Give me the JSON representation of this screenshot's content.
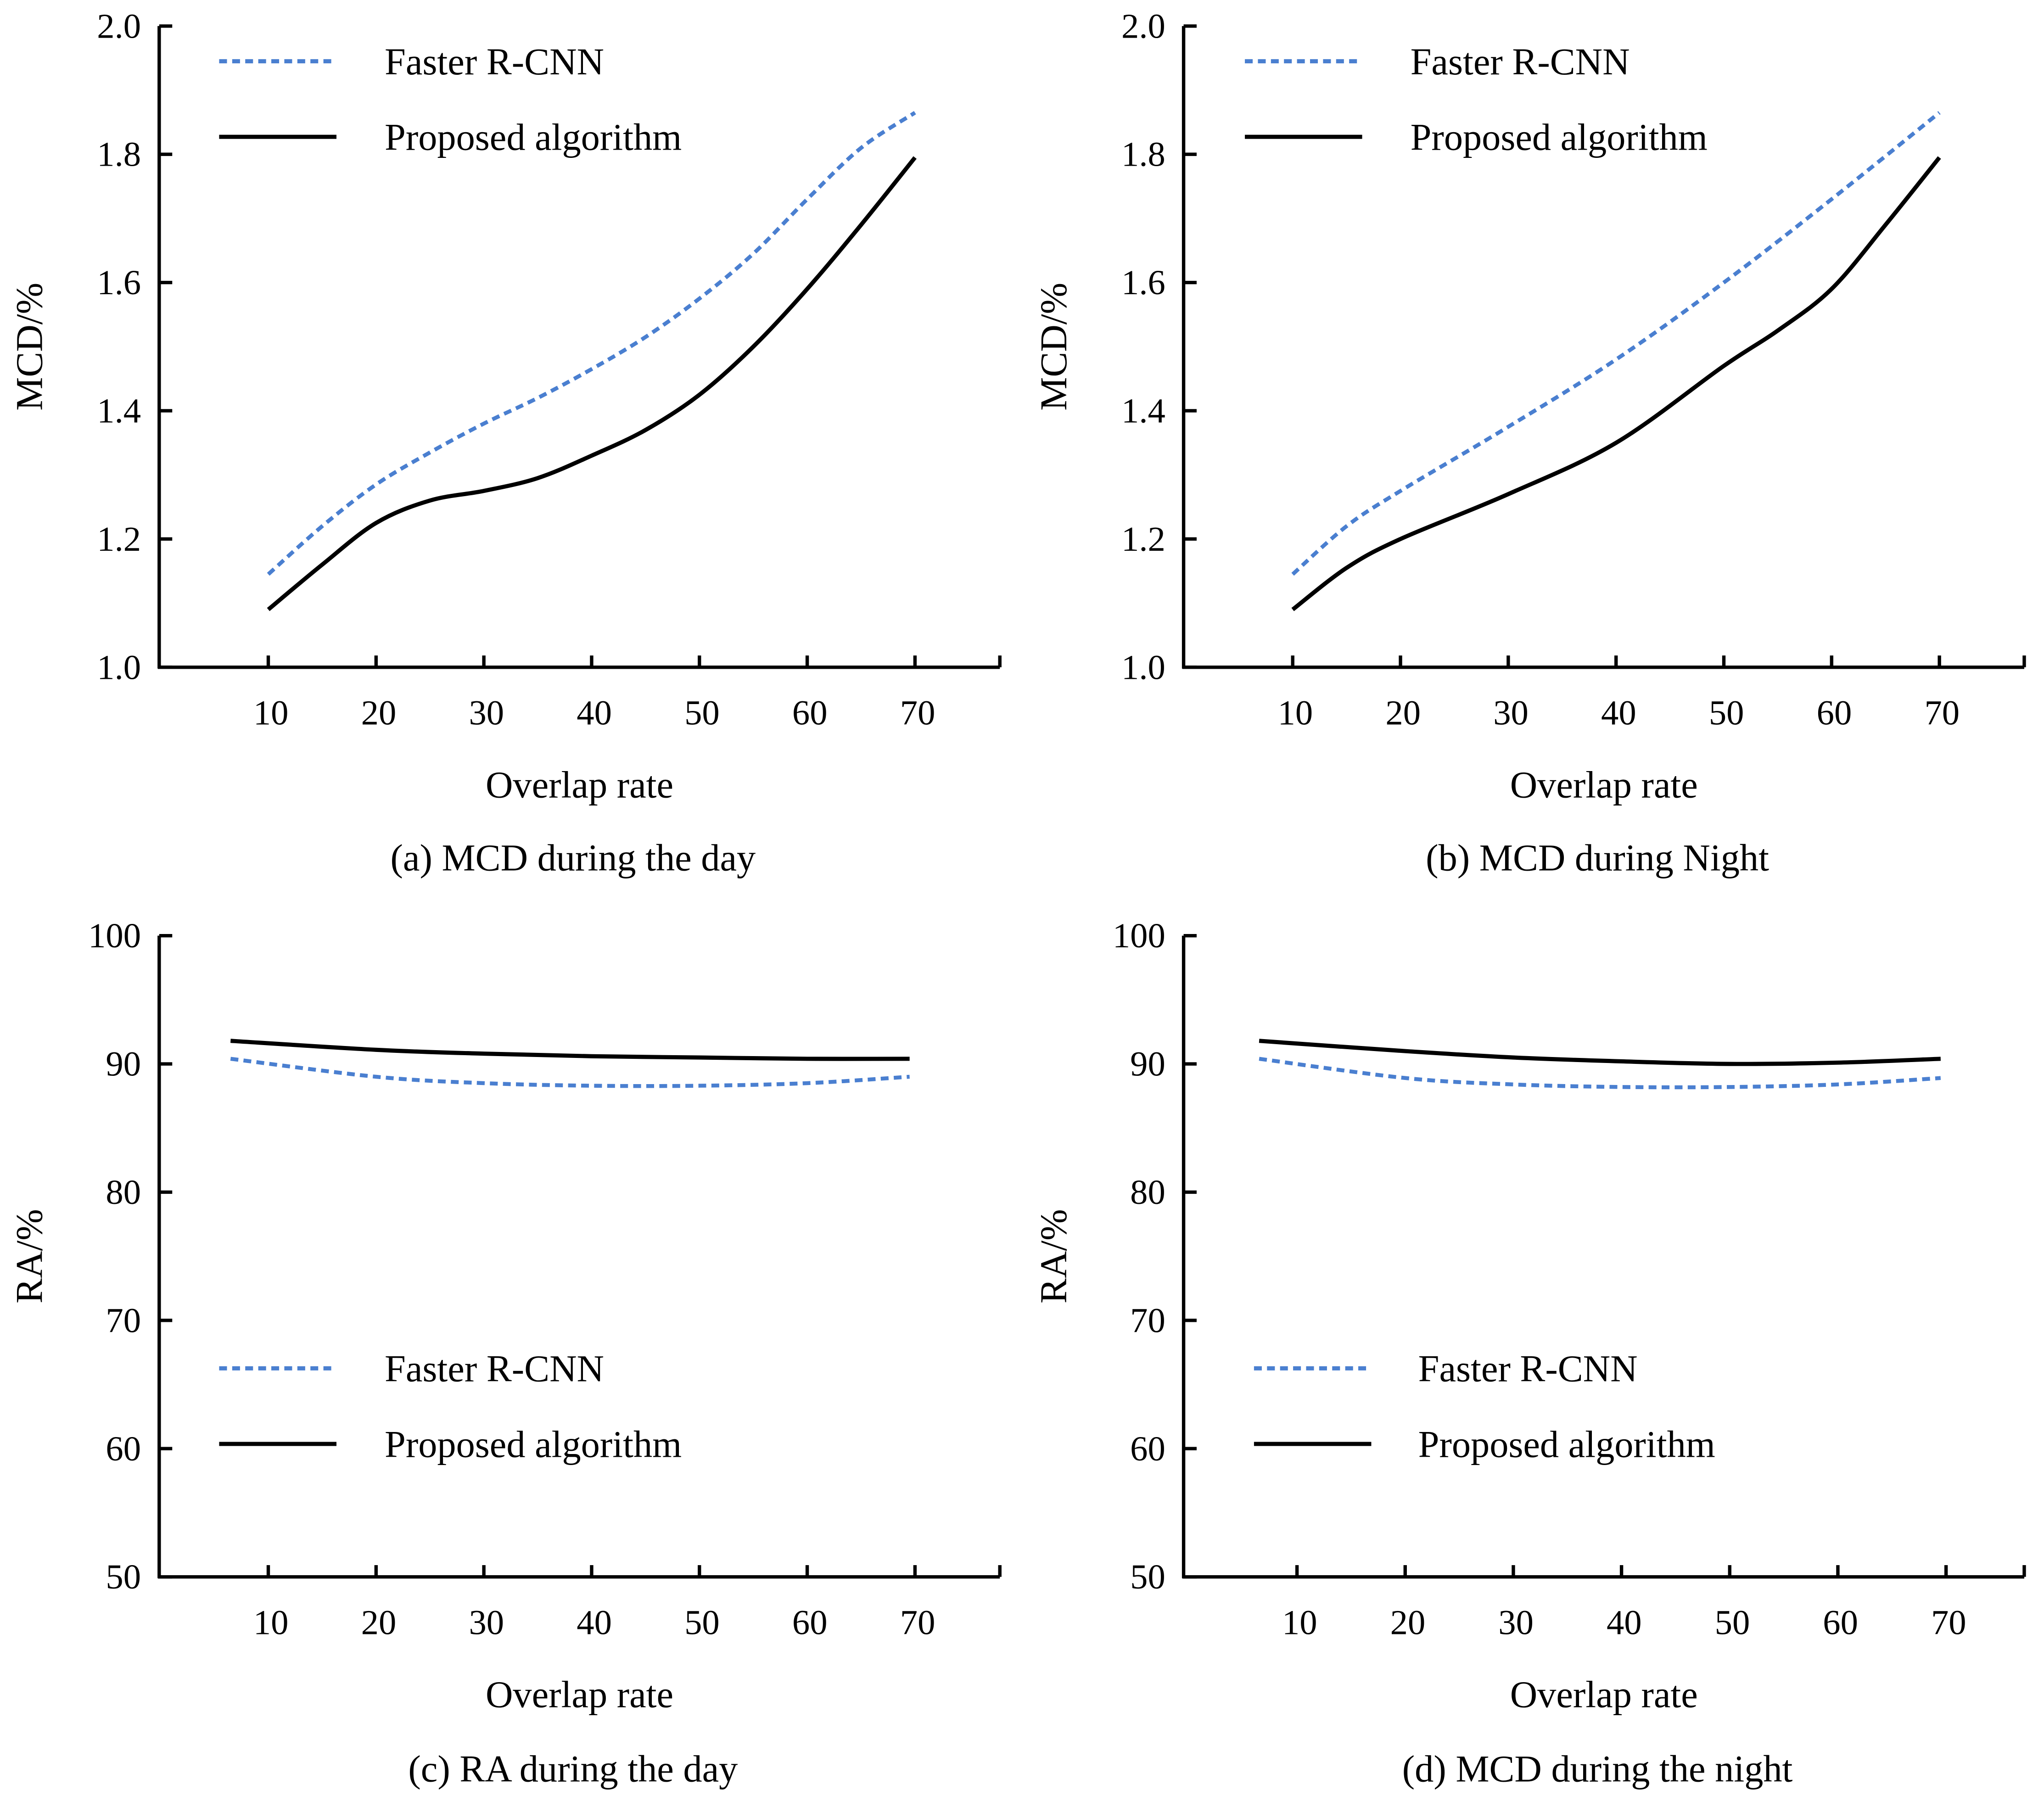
{
  "colors": {
    "faster": "#4a7fd0",
    "proposed": "#000000"
  },
  "chart_data": [
    {
      "type": "line",
      "panel": "a",
      "caption": "(a) MCD during the day",
      "xlabel": "Overlap rate",
      "ylabel": "MCD/%",
      "xlim": [
        0,
        77
      ],
      "ylim": [
        1.0,
        2.0
      ],
      "xticks": [
        "10",
        "20",
        "30",
        "40",
        "50",
        "60",
        "70"
      ],
      "yticks": [
        "1.0",
        "1.2",
        "1.4",
        "1.6",
        "1.8",
        "2.0"
      ],
      "legend": {
        "placement": "top-left",
        "entries": [
          "Faster R-CNN",
          "Proposed algorithm"
        ]
      },
      "series": [
        {
          "name": "Faster R-CNN",
          "style": "dotted",
          "x": [
            10,
            15,
            20,
            25,
            30,
            35,
            40,
            45,
            50,
            55,
            60,
            65,
            70
          ],
          "y": [
            1.145,
            1.22,
            1.285,
            1.335,
            1.38,
            1.42,
            1.465,
            1.515,
            1.575,
            1.645,
            1.73,
            1.81,
            1.865
          ]
        },
        {
          "name": "Proposed algorithm",
          "style": "solid",
          "x": [
            10,
            15,
            20,
            25,
            30,
            35,
            40,
            45,
            50,
            55,
            60,
            65,
            70
          ],
          "y": [
            1.09,
            1.16,
            1.225,
            1.26,
            1.275,
            1.295,
            1.33,
            1.37,
            1.425,
            1.5,
            1.59,
            1.69,
            1.795
          ]
        }
      ]
    },
    {
      "type": "line",
      "panel": "b",
      "caption": "(b) MCD during Night",
      "xlabel": "Overlap rate",
      "ylabel": "MCD/%",
      "xlim": [
        0,
        77
      ],
      "ylim": [
        1.0,
        2.0
      ],
      "xticks": [
        "10",
        "20",
        "30",
        "40",
        "50",
        "60",
        "70"
      ],
      "yticks": [
        "1.0",
        "1.2",
        "1.4",
        "1.6",
        "1.8",
        "2.0"
      ],
      "legend": {
        "placement": "top-left",
        "entries": [
          "Faster R-CNN",
          "Proposed algorithm"
        ]
      },
      "series": [
        {
          "name": "Faster R-CNN",
          "style": "dotted",
          "x": [
            10,
            15,
            20,
            30,
            40,
            50,
            60,
            70
          ],
          "y": [
            1.145,
            1.22,
            1.275,
            1.375,
            1.48,
            1.6,
            1.73,
            1.865
          ]
        },
        {
          "name": "Proposed algorithm",
          "style": "solid",
          "x": [
            10,
            15,
            20,
            30,
            40,
            50,
            55,
            60,
            65,
            70
          ],
          "y": [
            1.09,
            1.155,
            1.2,
            1.27,
            1.35,
            1.47,
            1.525,
            1.59,
            1.69,
            1.795
          ]
        }
      ]
    },
    {
      "type": "line",
      "panel": "c",
      "caption": "(c)  RA during the day",
      "xlabel": "Overlap rate",
      "ylabel": "RA/%",
      "xlim": [
        0,
        77
      ],
      "ylim": [
        50,
        100
      ],
      "xticks": [
        "10",
        "20",
        "30",
        "40",
        "50",
        "60",
        "70"
      ],
      "yticks": [
        "50",
        "60",
        "70",
        "80",
        "90",
        "100"
      ],
      "legend": {
        "placement": "lower-left",
        "entries": [
          "Faster R-CNN",
          "Proposed algorithm"
        ]
      },
      "series": [
        {
          "name": "Faster R-CNN",
          "style": "dotted",
          "x": [
            6.5,
            20,
            30,
            40,
            50,
            60,
            69.5
          ],
          "y": [
            90.4,
            89.0,
            88.5,
            88.3,
            88.3,
            88.5,
            89.0
          ]
        },
        {
          "name": "Proposed algorithm",
          "style": "solid",
          "x": [
            6.5,
            20,
            30,
            40,
            50,
            60,
            69.5
          ],
          "y": [
            91.8,
            91.1,
            90.8,
            90.6,
            90.5,
            90.4,
            90.4
          ]
        }
      ]
    },
    {
      "type": "line",
      "panel": "d",
      "caption": "(d) MCD during the night",
      "xlabel": "Overlap rate",
      "ylabel": "RA/%",
      "xlim": [
        0,
        77
      ],
      "ylim": [
        50,
        100
      ],
      "xticks": [
        "10",
        "20",
        "30",
        "40",
        "50",
        "60",
        "70"
      ],
      "yticks": [
        "50",
        "60",
        "70",
        "80",
        "90",
        "100"
      ],
      "legend": {
        "placement": "lower-left",
        "entries": [
          "Faster R-CNN",
          "Proposed algorithm"
        ]
      },
      "series": [
        {
          "name": "Faster R-CNN",
          "style": "dotted",
          "x": [
            6.5,
            20,
            30,
            40,
            50,
            60,
            69.5
          ],
          "y": [
            90.4,
            88.9,
            88.4,
            88.2,
            88.2,
            88.4,
            88.9
          ]
        },
        {
          "name": "Proposed algorithm",
          "style": "solid",
          "x": [
            6.5,
            20,
            30,
            40,
            50,
            60,
            69.5
          ],
          "y": [
            91.8,
            91.0,
            90.5,
            90.2,
            90.0,
            90.1,
            90.4
          ]
        }
      ]
    }
  ]
}
